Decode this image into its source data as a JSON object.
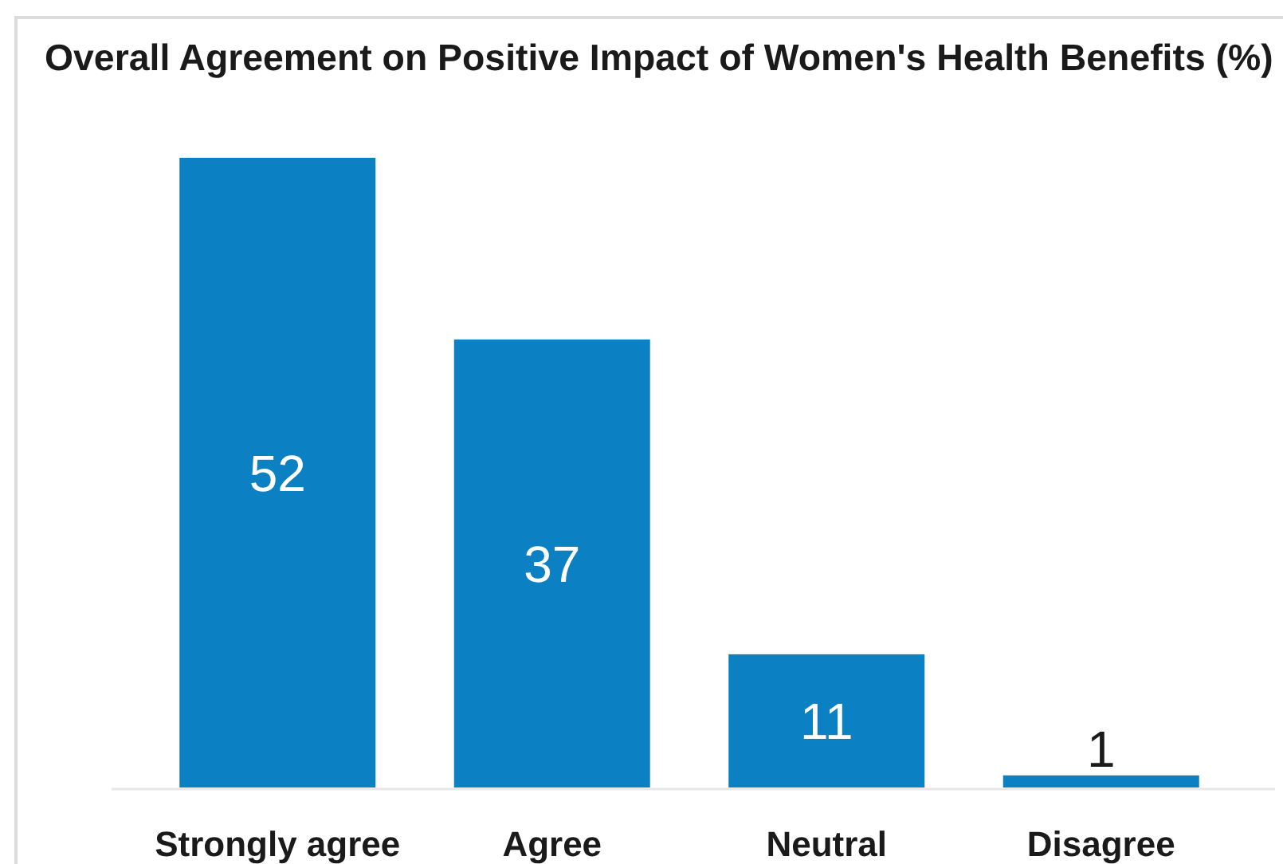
{
  "chart_data": {
    "type": "bar",
    "title": "Overall Agreement on Positive Impact of Women's Health Benefits (%)",
    "categories": [
      "Strongly agree",
      "Agree",
      "Neutral",
      "Disagree"
    ],
    "values": [
      52,
      37,
      11,
      1
    ],
    "color": "#0b80c3",
    "data_labels": true
  }
}
